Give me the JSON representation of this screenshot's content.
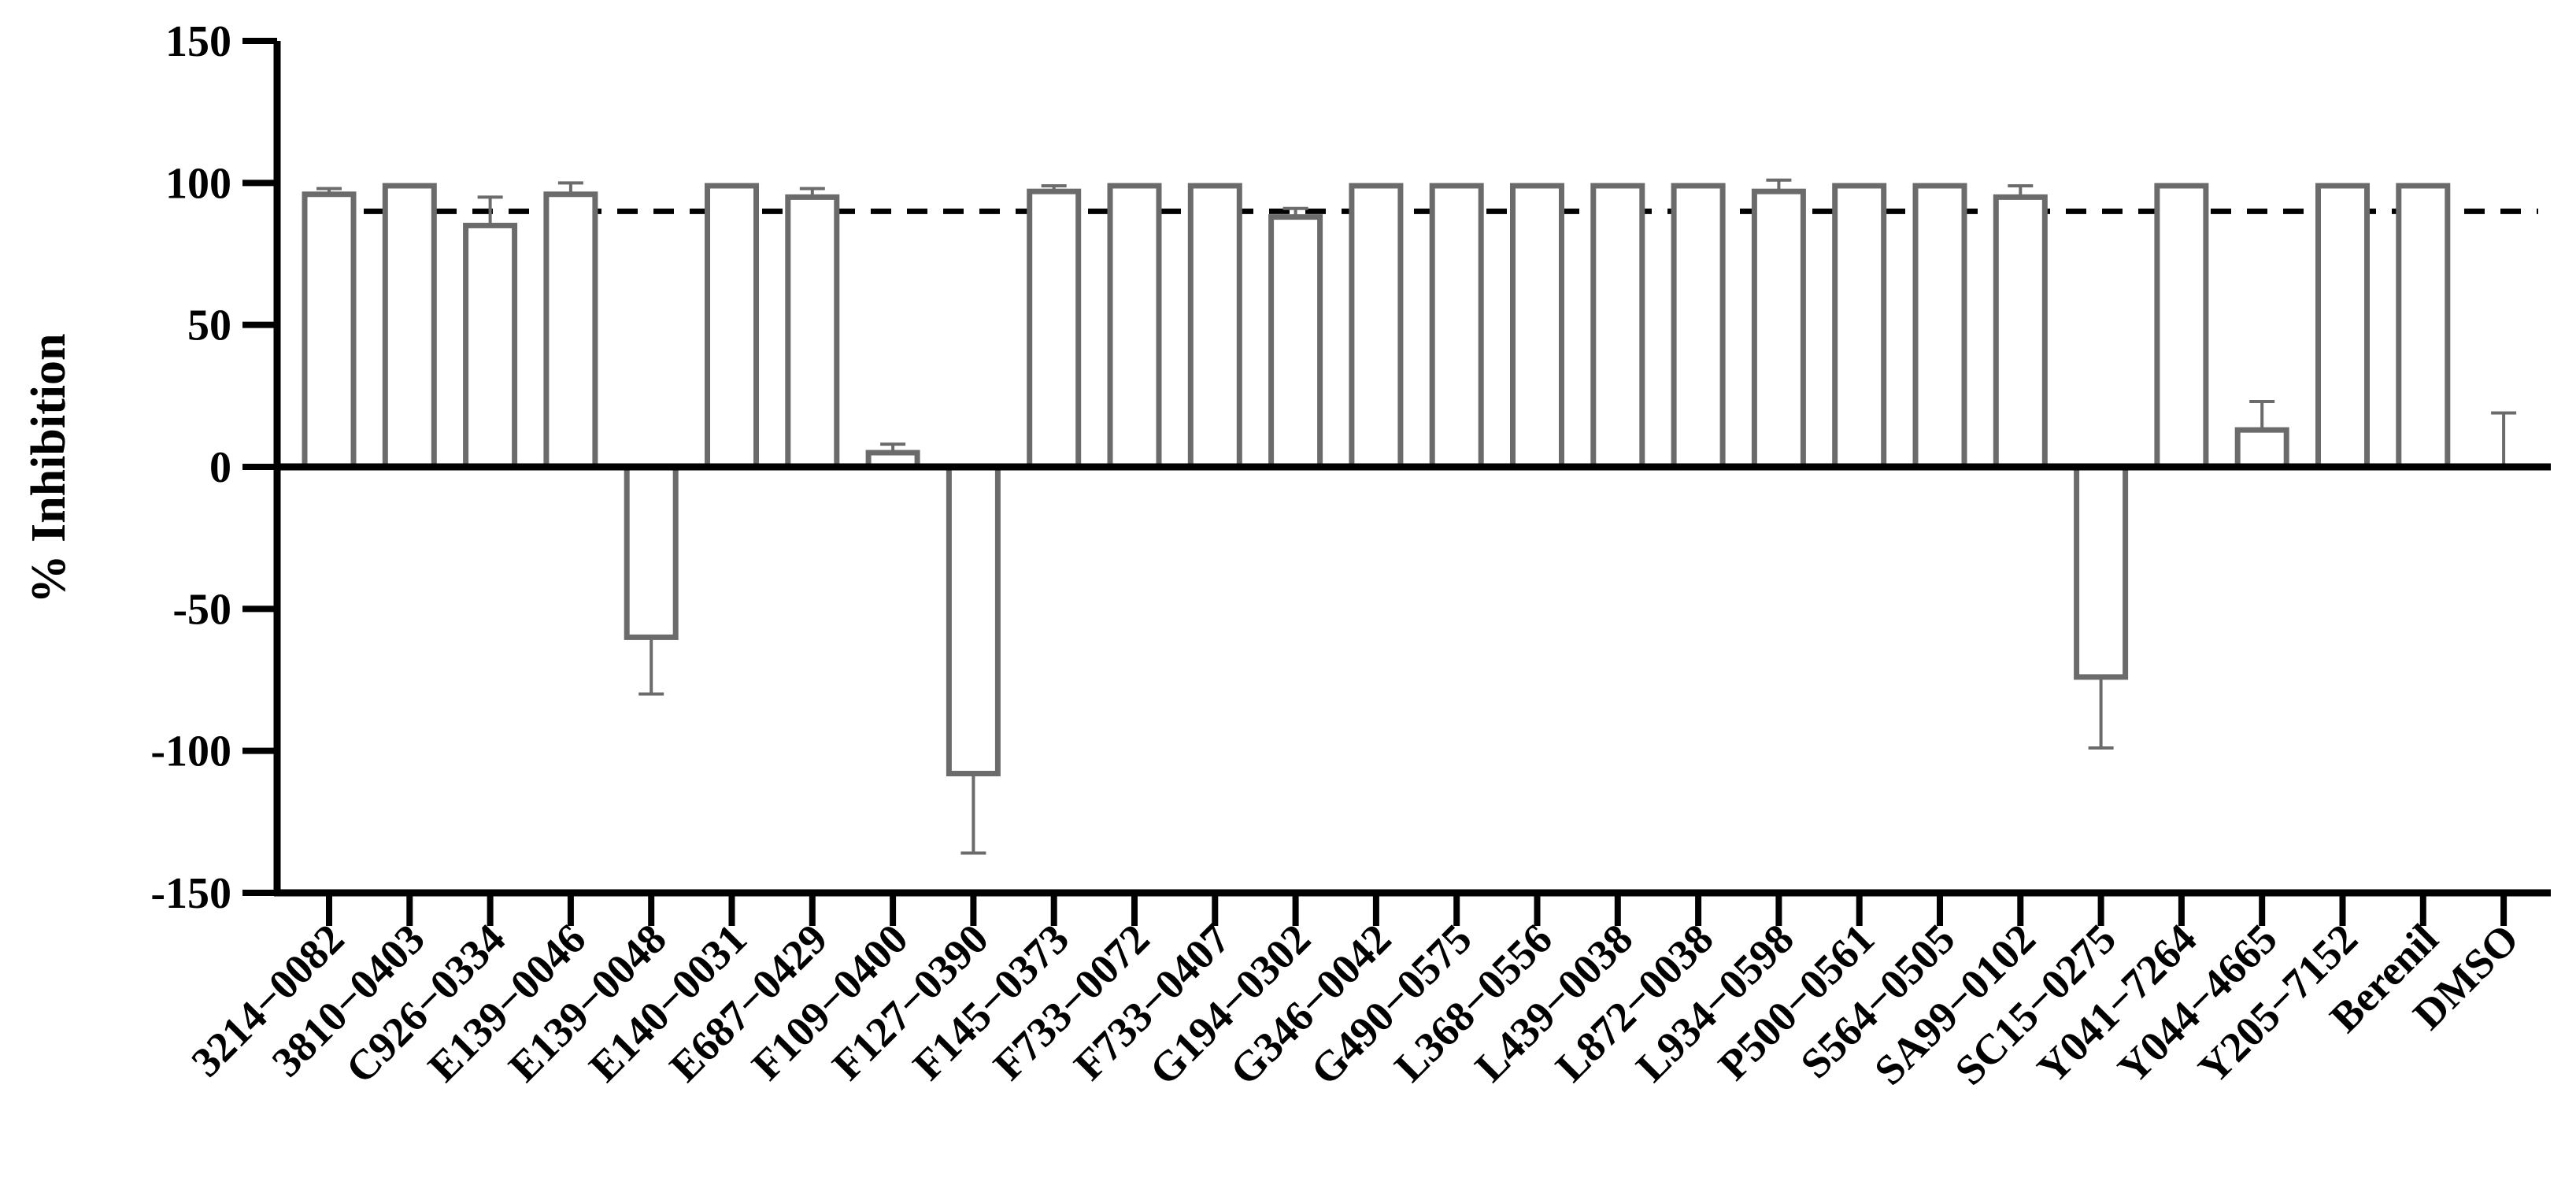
{
  "chart_data": {
    "type": "bar",
    "title": "",
    "xlabel": "",
    "ylabel": "% Inhibition",
    "ylim": [
      -150,
      150
    ],
    "yticks": [
      150,
      100,
      50,
      0,
      -50,
      -100,
      -150
    ],
    "ytick_labels": [
      "150",
      "100",
      "50",
      "0",
      "-50",
      "-100",
      "-150"
    ],
    "reference_line": {
      "y": 90,
      "style": "dashed"
    },
    "categories": [
      "3214−0082",
      "3810−0403",
      "C926−0334",
      "E139−0046",
      "E139−0048",
      "E140−0031",
      "E687−0429",
      "F109−0400",
      "F127−0390",
      "F145−0373",
      "F733−0072",
      "F733−0407",
      "G194−0302",
      "G346−0042",
      "G490−0575",
      "L368−0556",
      "L439−0038",
      "L872−0038",
      "L934−0598",
      "P500−0561",
      "S564−0505",
      "SA99−0102",
      "SC15−0275",
      "Y041−7264",
      "Y044−4665",
      "Y205−7152",
      "Berenil",
      "DMSO"
    ],
    "values": [
      96,
      99,
      85,
      96,
      -60,
      99,
      95,
      5,
      -108,
      97,
      99,
      99,
      88,
      99,
      99,
      99,
      99,
      99,
      97,
      99,
      99,
      95,
      -74,
      99,
      13,
      99,
      99,
      0
    ],
    "errors": [
      2,
      0,
      10,
      4,
      20,
      0,
      3,
      3,
      28,
      2,
      0,
      0,
      3,
      0,
      0,
      0,
      0,
      0,
      4,
      0,
      0,
      4,
      25,
      0,
      10,
      0,
      0,
      19
    ],
    "colors": {
      "bar_fill": "#ffffff",
      "bar_stroke": "#6b6b6b",
      "axis": "#000000",
      "reference": "#000000"
    }
  }
}
